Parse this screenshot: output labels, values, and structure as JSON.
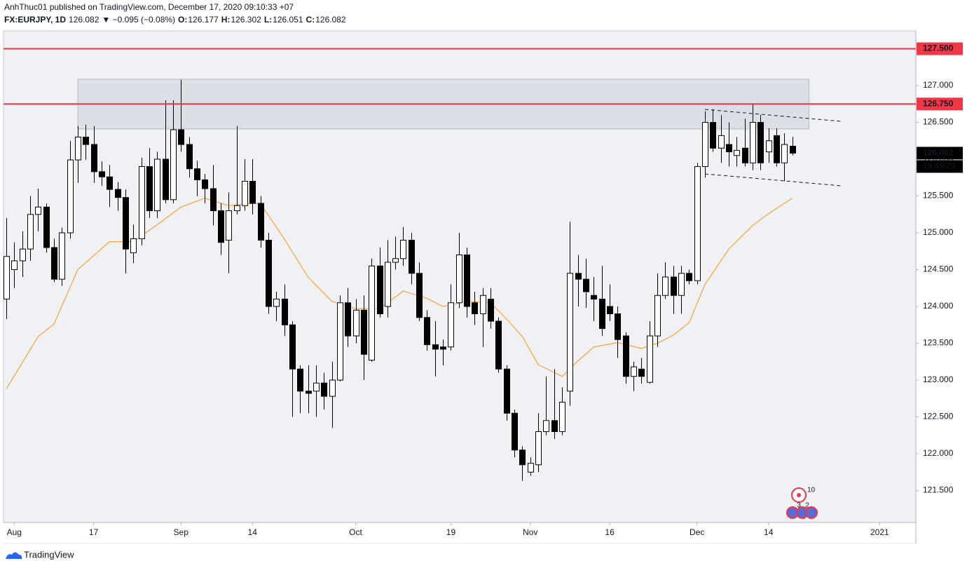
{
  "header": {
    "publisher": "AnhThuc01 published on TradingView.com, December 17, 2020 09:10:33 +07"
  },
  "footer": {
    "brand": "TradingView"
  },
  "badges": [
    "10",
    "3",
    "2"
  ],
  "chart_data": {
    "type": "candlestick",
    "symbol": "FX:EURJPY, 1D",
    "last": "126.082",
    "change": "▼ −0.095 (−0.08%)",
    "ohlc": [
      {
        "key": "O:",
        "value": "126.177"
      },
      {
        "key": "H:",
        "value": "126.302"
      },
      {
        "key": "L:",
        "value": "126.051"
      },
      {
        "key": "C:",
        "value": "126.082"
      }
    ],
    "up_color": "#ffffff",
    "down_color": "#000000",
    "wick_color": "#000000",
    "open": [
      124.1,
      124.5,
      124.62,
      124.78,
      125.25,
      125.35,
      124.8,
      124.37,
      125.0,
      125.99,
      126.3,
      126.2,
      125.83,
      125.76,
      125.59,
      125.48,
      124.73,
      124.92,
      125.9,
      125.3,
      126.0,
      125.45,
      126.4,
      126.2,
      125.87,
      125.72,
      125.6,
      125.3,
      124.9,
      125.3,
      125.37,
      125.7,
      125.4,
      124.9,
      124.0,
      124.1,
      123.75,
      123.15,
      122.85,
      122.85,
      122.96,
      122.78,
      123.0,
      124.05,
      123.6,
      123.95,
      123.27,
      124.55,
      124.0,
      124.6,
      124.65,
      124.9,
      124.45,
      123.85,
      123.48,
      123.45,
      123.45,
      124.05,
      124.7,
      124.05,
      123.9,
      124.1,
      123.8,
      123.15,
      122.55,
      122.05,
      121.75,
      121.85,
      122.3,
      122.45,
      122.3,
      122.85,
      124.45,
      124.37,
      124.15,
      124.1,
      124.0,
      123.9,
      123.6,
      123.05,
      123.15,
      122.97,
      123.6,
      124.15,
      124.4,
      124.15,
      124.45,
      124.35,
      125.9,
      126.5,
      126.15,
      126.2,
      126.05,
      126.15,
      125.95,
      126.5,
      126.1,
      126.32,
      125.95,
      126.177
    ],
    "high": [
      125.2,
      124.87,
      125.02,
      125.5,
      125.6,
      125.4,
      124.92,
      125.07,
      126.25,
      126.45,
      126.47,
      126.45,
      125.97,
      125.92,
      125.69,
      125.59,
      125.11,
      126.02,
      126.15,
      126.1,
      126.8,
      126.8,
      127.08,
      126.3,
      125.98,
      125.8,
      125.92,
      125.4,
      125.55,
      126.45,
      126.0,
      126.0,
      125.5,
      125.0,
      124.2,
      124.3,
      123.8,
      123.2,
      123.2,
      123.2,
      123.1,
      123.25,
      124.15,
      124.25,
      124.1,
      124.15,
      124.65,
      124.8,
      124.9,
      124.95,
      125.08,
      125.0,
      124.6,
      123.95,
      123.8,
      123.55,
      124.3,
      125.0,
      124.8,
      124.2,
      124.25,
      124.25,
      123.85,
      123.2,
      122.6,
      122.1,
      121.95,
      122.55,
      123.05,
      123.15,
      122.9,
      125.15,
      124.7,
      124.65,
      124.4,
      124.55,
      124.3,
      124.0,
      123.65,
      123.25,
      123.3,
      123.8,
      124.45,
      124.6,
      124.55,
      124.55,
      124.5,
      125.95,
      126.65,
      126.68,
      126.6,
      126.5,
      126.3,
      126.55,
      126.75,
      126.6,
      126.42,
      126.42,
      126.35,
      126.302
    ],
    "low": [
      123.83,
      124.25,
      124.4,
      124.62,
      125.02,
      124.73,
      124.33,
      124.28,
      124.92,
      125.68,
      125.99,
      125.68,
      125.64,
      125.35,
      125.3,
      124.45,
      124.59,
      124.83,
      125.2,
      125.2,
      125.4,
      125.4,
      126.1,
      125.75,
      125.5,
      125.4,
      125.1,
      124.7,
      124.45,
      125.25,
      125.3,
      125.25,
      124.8,
      123.9,
      123.8,
      123.6,
      122.5,
      122.55,
      122.55,
      122.5,
      122.6,
      122.35,
      122.98,
      123.45,
      123.5,
      123.0,
      123.25,
      123.85,
      123.85,
      124.5,
      124.55,
      124.3,
      123.8,
      123.4,
      123.05,
      123.2,
      123.4,
      123.98,
      123.85,
      123.75,
      123.45,
      123.7,
      123.1,
      122.45,
      121.95,
      121.63,
      121.7,
      121.75,
      122.25,
      122.2,
      122.25,
      122.65,
      124.0,
      123.98,
      123.8,
      123.6,
      123.8,
      123.3,
      122.95,
      122.85,
      122.95,
      122.95,
      123.45,
      124.1,
      123.9,
      123.9,
      124.3,
      124.3,
      125.75,
      126.1,
      125.95,
      125.9,
      125.9,
      125.9,
      125.85,
      125.85,
      125.95,
      125.9,
      125.7,
      126.051
    ],
    "close": [
      124.68,
      124.62,
      124.78,
      125.25,
      125.35,
      124.8,
      124.37,
      125.0,
      125.99,
      126.3,
      126.2,
      125.83,
      125.76,
      125.59,
      125.48,
      124.78,
      124.92,
      125.9,
      125.3,
      126.0,
      125.45,
      126.4,
      126.2,
      125.87,
      125.72,
      125.6,
      125.3,
      124.87,
      125.3,
      125.37,
      125.7,
      125.4,
      124.9,
      124.0,
      124.1,
      123.75,
      123.15,
      122.85,
      122.82,
      122.96,
      122.78,
      123.0,
      124.05,
      123.6,
      123.95,
      123.35,
      124.55,
      123.9,
      124.6,
      124.65,
      124.9,
      124.45,
      123.85,
      123.48,
      123.42,
      123.42,
      124.05,
      124.7,
      124.0,
      123.9,
      124.15,
      123.8,
      123.15,
      122.55,
      122.05,
      121.85,
      121.87,
      122.3,
      122.45,
      122.3,
      122.7,
      124.45,
      124.37,
      124.2,
      124.1,
      123.7,
      123.9,
      123.55,
      123.05,
      123.18,
      123.05,
      123.6,
      124.15,
      124.4,
      124.15,
      124.45,
      124.35,
      125.9,
      126.5,
      126.15,
      126.32,
      126.1,
      126.12,
      125.95,
      126.5,
      125.95,
      126.25,
      125.95,
      126.2,
      126.082
    ],
    "ma": {
      "color": "#f7a234",
      "x": [
        0,
        4,
        6,
        9,
        13,
        16,
        19,
        22,
        25,
        28,
        31,
        32,
        35,
        38,
        41,
        44,
        47,
        50,
        53,
        55,
        58,
        61,
        63,
        65,
        67,
        70,
        72,
        74,
        77,
        80,
        82,
        84,
        86,
        88,
        91,
        94,
        96,
        99
      ],
      "values": [
        122.88,
        123.59,
        123.76,
        124.5,
        124.88,
        124.88,
        125.11,
        125.35,
        125.47,
        125.37,
        125.4,
        125.4,
        124.92,
        124.4,
        124.07,
        123.97,
        123.97,
        124.21,
        124.11,
        124.0,
        124.07,
        124.05,
        123.83,
        123.59,
        123.21,
        123.05,
        123.26,
        123.45,
        123.51,
        123.43,
        123.5,
        123.61,
        123.78,
        124.3,
        124.78,
        125.1,
        125.26,
        125.47
      ]
    },
    "zone": {
      "color": "#d1d4dc",
      "x": [
        9,
        101.1
      ],
      "y": [
        126.41,
        127.086
      ]
    },
    "trendlines": [
      {
        "x": [
          88,
          105.2
        ],
        "y": [
          126.676,
          126.514
        ]
      },
      {
        "x": [
          88,
          105.2
        ],
        "y": [
          125.8,
          125.638
        ]
      }
    ],
    "hlines": [
      {
        "value": 127.5,
        "label": "127.500",
        "color": "#f23645"
      },
      {
        "value": 126.75,
        "label": "126.750",
        "color": "#f23645"
      }
    ],
    "price_label": "126.082",
    "countdown": "19:49:29",
    "xlim": [
      -0.35,
      114.56
    ],
    "ylim": [
      121.067,
      127.743
    ],
    "xticks": [
      {
        "value": 1,
        "label": "Aug"
      },
      {
        "value": 11,
        "label": "17"
      },
      {
        "value": 22,
        "label": "Sep"
      },
      {
        "value": 31,
        "label": "14"
      },
      {
        "value": 44,
        "label": "Oct"
      },
      {
        "value": 56,
        "label": "19"
      },
      {
        "value": 66,
        "label": "Nov"
      },
      {
        "value": 76,
        "label": "16"
      },
      {
        "value": 87,
        "label": "Dec"
      },
      {
        "value": 96,
        "label": "14"
      },
      {
        "value": 110,
        "label": "2021"
      }
    ],
    "yticks": [
      {
        "value": 127,
        "label": "127.000"
      },
      {
        "value": 126.5,
        "label": "126.500"
      },
      {
        "value": 126,
        "label": "126.000"
      },
      {
        "value": 125.5,
        "label": "125.500"
      },
      {
        "value": 125,
        "label": "125.000"
      },
      {
        "value": 124.5,
        "label": "124.500"
      },
      {
        "value": 124,
        "label": "124.000"
      },
      {
        "value": 123.5,
        "label": "123.500"
      },
      {
        "value": 123,
        "label": "123.000"
      },
      {
        "value": 122.5,
        "label": "122.500"
      },
      {
        "value": 122,
        "label": "122.000"
      },
      {
        "value": 121.5,
        "label": "121.500"
      }
    ]
  }
}
